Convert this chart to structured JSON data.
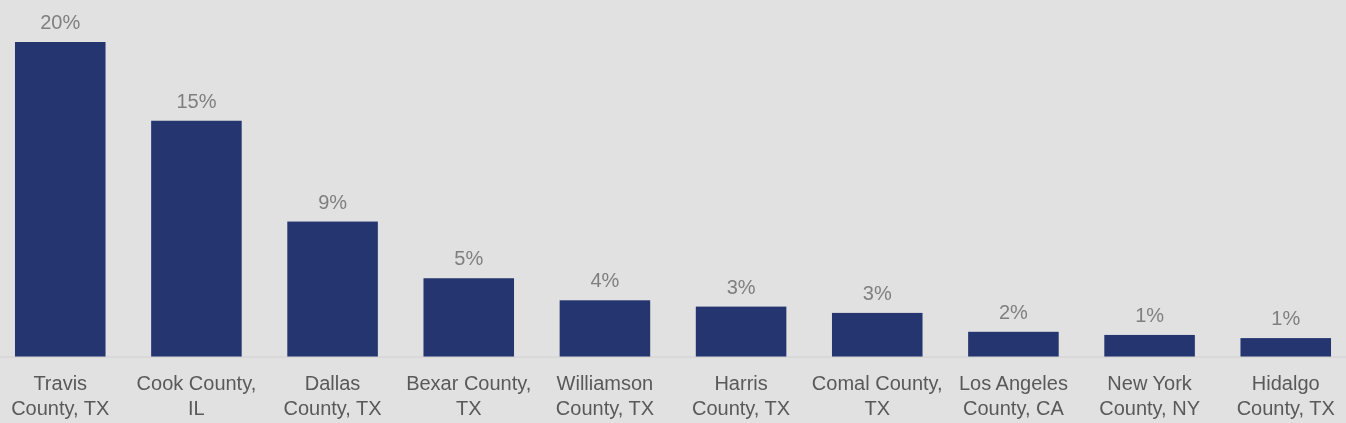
{
  "chart_data": {
    "type": "bar",
    "categories": [
      "Travis County, TX",
      "Cook County, IL",
      "Dallas County, TX",
      "Bexar County, TX",
      "Williamson County, TX",
      "Harris County, TX",
      "Comal County, TX",
      "Los Angeles County, CA",
      "New York County, NY",
      "Hidalgo County, TX"
    ],
    "values": [
      20,
      15,
      8.6,
      5,
      3.6,
      3.2,
      2.8,
      1.6,
      1.4,
      1.2
    ],
    "value_labels": [
      "20%",
      "15%",
      "9%",
      "5%",
      "4%",
      "3%",
      "3%",
      "2%",
      "1%",
      "1%"
    ],
    "color": "#253570"
  }
}
